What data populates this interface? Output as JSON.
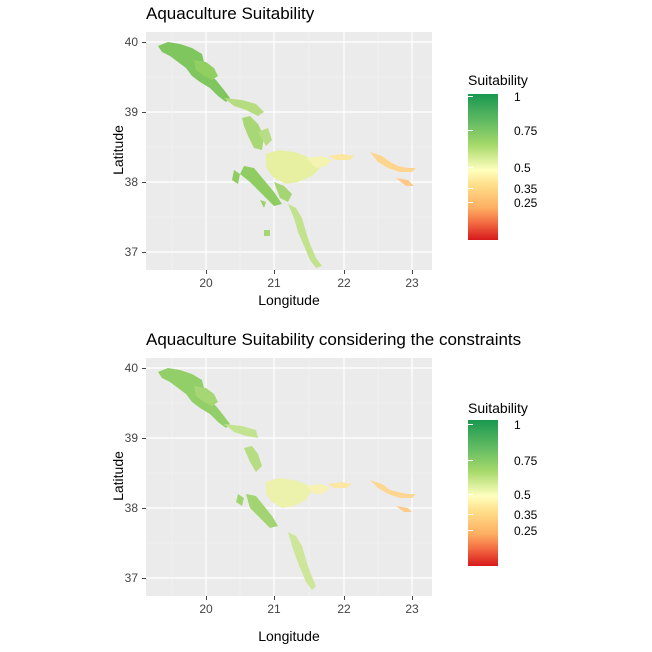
{
  "figure": {
    "plots": [
      {
        "title": "Aquaculture Suitability",
        "xlabel": "Longitude",
        "ylabel": "Latitude",
        "x_ticks": [
          "20",
          "21",
          "22",
          "23"
        ],
        "y_ticks": [
          "40",
          "39",
          "38",
          "37"
        ],
        "legend_title": "Suitability",
        "legend_labels": [
          "1",
          "0.75",
          "0.5",
          "0.35",
          "0.25"
        ]
      },
      {
        "title": "Aquaculture Suitability considering the constraints",
        "xlabel": "Longitude",
        "ylabel": "Latitude",
        "x_ticks": [
          "20",
          "21",
          "22",
          "23"
        ],
        "y_ticks": [
          "40",
          "39",
          "38",
          "37"
        ],
        "legend_title": "Suitability",
        "legend_labels": [
          "1",
          "0.75",
          "0.5",
          "0.35",
          "0.25"
        ]
      }
    ]
  },
  "colors": {
    "high": "#1a9850",
    "mid_high": "#91cf60",
    "mid": "#ffffbf",
    "mid_low": "#fdae61",
    "low": "#d7191c",
    "panel_bg": "#ebebeb",
    "grid": "#ffffff"
  },
  "map": {
    "x_range": [
      19.35,
      23.25
    ],
    "y_range": [
      36.7,
      40.05
    ],
    "legend_scale": [
      0,
      1
    ]
  }
}
